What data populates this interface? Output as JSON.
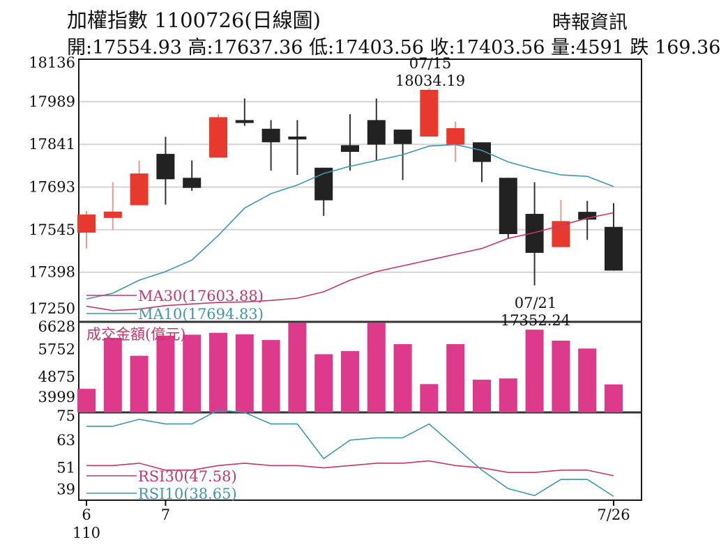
{
  "header": {
    "title": "加權指數 1100726(日線圖)",
    "source": "時報資訊",
    "quote": "開:17554.93 高:17637.36 低:17403.56 收:17403.56 量:4591 跌 169.36"
  },
  "chart_data": [
    {
      "type": "candlestick",
      "price_axis_ticks": [
        "18136",
        "17989",
        "17841",
        "17693",
        "17545",
        "17398",
        "17250"
      ],
      "ylim": [
        17250,
        18136
      ],
      "up_color": "#e8392f",
      "down_color": "#222222",
      "candles": [
        {
          "open": 17535,
          "high": 17610,
          "low": 17480,
          "close": 17598
        },
        {
          "open": 17586,
          "high": 17710,
          "low": 17545,
          "close": 17608
        },
        {
          "open": 17630,
          "high": 17785,
          "low": 17630,
          "close": 17740
        },
        {
          "open": 17808,
          "high": 17867,
          "low": 17632,
          "close": 17720
        },
        {
          "open": 17725,
          "high": 17785,
          "low": 17680,
          "close": 17690
        },
        {
          "open": 17795,
          "high": 17945,
          "low": 17795,
          "close": 17935
        },
        {
          "open": 17925,
          "high": 18000,
          "low": 17905,
          "close": 17915
        },
        {
          "open": 17895,
          "high": 17925,
          "low": 17750,
          "close": 17848
        },
        {
          "open": 17868,
          "high": 17925,
          "low": 17735,
          "close": 17858
        },
        {
          "open": 17760,
          "high": 17760,
          "low": 17593,
          "close": 17647
        },
        {
          "open": 17838,
          "high": 17945,
          "low": 17750,
          "close": 17815
        },
        {
          "open": 17925,
          "high": 18000,
          "low": 17786,
          "close": 17840
        },
        {
          "open": 17892,
          "high": 17892,
          "low": 17717,
          "close": 17842
        },
        {
          "open": 17868,
          "high": 18034.19,
          "low": 17868,
          "close": 18030
        },
        {
          "open": 17840,
          "high": 17920,
          "low": 17780,
          "close": 17897
        },
        {
          "open": 17848,
          "high": 17848,
          "low": 17710,
          "close": 17780
        },
        {
          "open": 17725,
          "high": 17725,
          "low": 17515,
          "close": 17530
        },
        {
          "open": 17600,
          "high": 17710,
          "low": 17352.24,
          "close": 17465
        },
        {
          "open": 17485,
          "high": 17648,
          "low": 17485,
          "close": 17575
        },
        {
          "open": 17607,
          "high": 17645,
          "low": 17510,
          "close": 17580
        },
        {
          "open": 17554.93,
          "high": 17637.36,
          "low": 17403.56,
          "close": 17403.56
        }
      ],
      "ma30": [
        17280,
        17265,
        17270,
        17282,
        17288,
        17293,
        17295,
        17300,
        17308,
        17330,
        17370,
        17400,
        17420,
        17440,
        17460,
        17480,
        17515,
        17535,
        17560,
        17585,
        17603.88
      ],
      "ma10": [
        17305,
        17325,
        17370,
        17400,
        17440,
        17525,
        17620,
        17670,
        17700,
        17740,
        17765,
        17785,
        17805,
        17835,
        17840,
        17820,
        17780,
        17755,
        17735,
        17730,
        17694.83
      ],
      "ma30_label": "MA30(17603.88)",
      "ma10_label": "MA10(17694.83)",
      "ma30_color": "#c2366e",
      "ma10_color": "#3e96ae",
      "annotations": [
        {
          "date": "07/15",
          "value": "18034.19"
        },
        {
          "date": "07/21",
          "value": "17352.24"
        }
      ]
    },
    {
      "type": "bar",
      "title": "成交金額(億元)",
      "ticks": [
        "6628",
        "5752",
        "4875",
        "3999"
      ],
      "ylim": [
        3750,
        6628
      ],
      "bar_color": "#dd3a8c",
      "values": [
        4500,
        6120,
        5550,
        6190,
        6220,
        6280,
        6230,
        6050,
        6640,
        5600,
        5700,
        6680,
        5920,
        4650,
        5920,
        4790,
        4830,
        6380,
        6030,
        5780,
        4640
      ]
    },
    {
      "type": "line",
      "ticks": [
        "75",
        "63",
        "51",
        "39"
      ],
      "ylim": [
        37,
        75
      ],
      "rsi30": [
        52,
        52,
        53,
        50,
        50,
        52,
        53,
        52,
        52,
        51,
        52,
        53,
        53,
        54,
        52,
        51,
        49,
        49,
        50,
        50,
        47.58
      ],
      "rsi10": [
        69,
        69,
        72,
        70,
        70,
        76,
        75,
        70,
        70,
        55,
        63,
        64,
        64,
        70,
        60,
        50,
        42,
        39,
        46,
        46,
        38.65
      ],
      "rsi30_label": "RSI30(47.58)",
      "rsi10_label": "RSI10(38.65)",
      "rsi30_color": "#c2366e",
      "rsi10_color": "#3e96ae"
    }
  ],
  "x_axis": {
    "labels": [
      {
        "index": 0,
        "text": "6"
      },
      {
        "index": 3,
        "text": "7"
      },
      {
        "index": 20,
        "text": "7/26"
      }
    ],
    "year_label": "110"
  }
}
